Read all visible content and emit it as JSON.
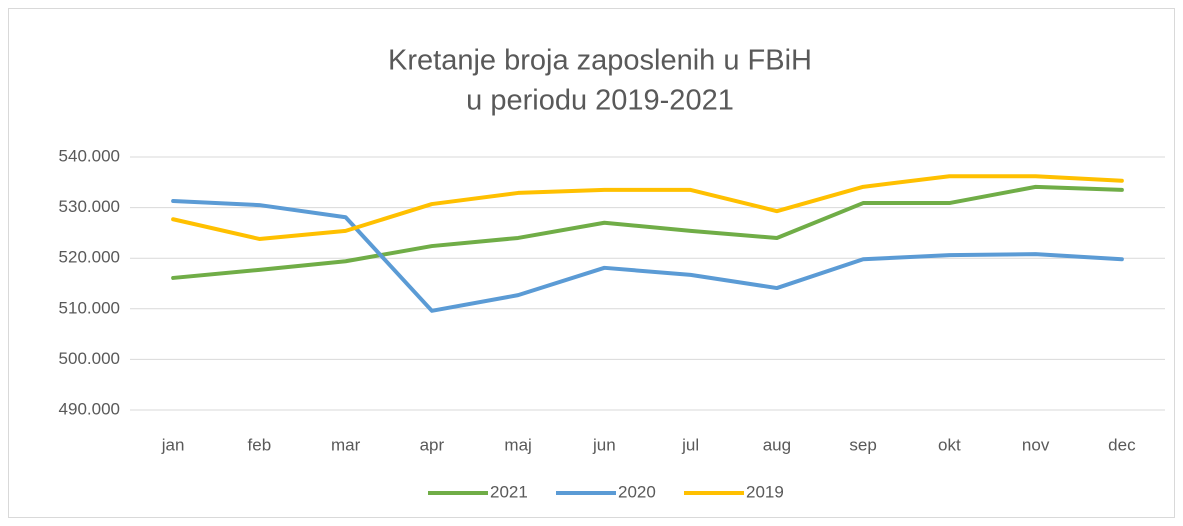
{
  "chart_data": {
    "type": "line",
    "title": [
      "Kretanje broja zaposlenih u FBiH",
      "u periodu 2019-2021"
    ],
    "categories": [
      "jan",
      "feb",
      "mar",
      "apr",
      "maj",
      "jun",
      "jul",
      "aug",
      "sep",
      "okt",
      "nov",
      "dec"
    ],
    "series": [
      {
        "name": "2021",
        "color": "#70ad47",
        "values": [
          516100,
          517700,
          519400,
          522400,
          524000,
          527000,
          525400,
          524000,
          530900,
          530900,
          534100,
          533500
        ]
      },
      {
        "name": "2020",
        "color": "#5b9bd5",
        "values": [
          531300,
          530500,
          528100,
          509600,
          512700,
          518100,
          516700,
          514100,
          519800,
          520600,
          520800,
          519800
        ]
      },
      {
        "name": "2019",
        "color": "#ffc000",
        "values": [
          527700,
          523800,
          525400,
          530700,
          532900,
          533500,
          533500,
          529300,
          534100,
          536200,
          536200,
          535300
        ]
      }
    ],
    "ylim": [
      490000,
      540000
    ],
    "yticks": [
      {
        "value": 490000,
        "label": "490.000"
      },
      {
        "value": 500000,
        "label": "500.000"
      },
      {
        "value": 510000,
        "label": "510.000"
      },
      {
        "value": 520000,
        "label": "520.000"
      },
      {
        "value": 530000,
        "label": "530.000"
      },
      {
        "value": 540000,
        "label": "540.000"
      }
    ],
    "grid": true,
    "legend": "bottom"
  }
}
